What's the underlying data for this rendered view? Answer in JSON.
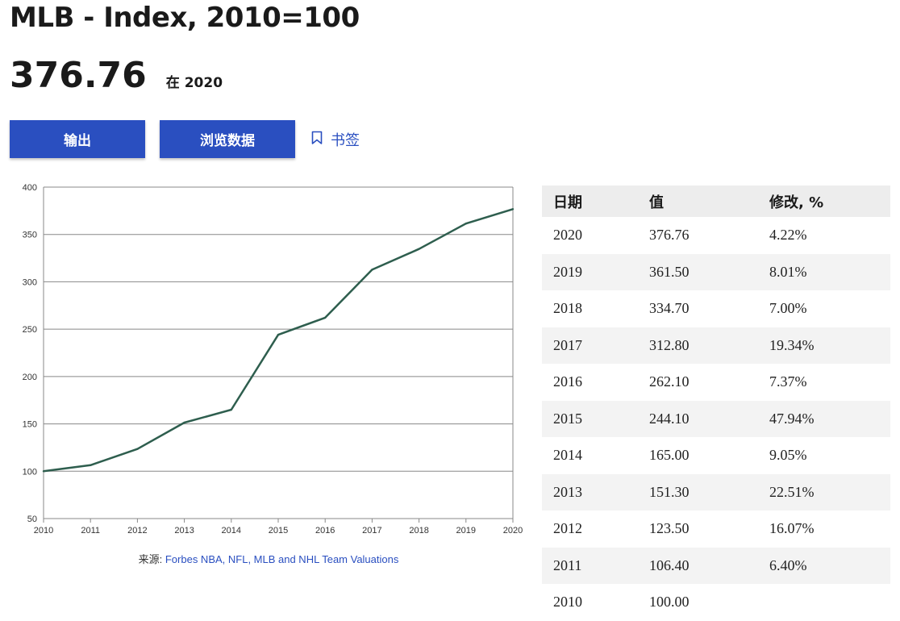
{
  "header": {
    "title": "MLB - Index, 2010=100",
    "latest_value": "376.76",
    "latest_note": "在 2020"
  },
  "actions": {
    "export_label": "输出",
    "browse_label": "浏览数据",
    "bookmark_label": "书签"
  },
  "source": {
    "prefix": "来源: ",
    "link_text": "Forbes NBA, NFL, MLB and NHL Team Valuations"
  },
  "table": {
    "headers": [
      "日期",
      "值",
      "修改, %"
    ],
    "rows": [
      [
        "2020",
        "376.76",
        "4.22%"
      ],
      [
        "2019",
        "361.50",
        "8.01%"
      ],
      [
        "2018",
        "334.70",
        "7.00%"
      ],
      [
        "2017",
        "312.80",
        "19.34%"
      ],
      [
        "2016",
        "262.10",
        "7.37%"
      ],
      [
        "2015",
        "244.10",
        "47.94%"
      ],
      [
        "2014",
        "165.00",
        "9.05%"
      ],
      [
        "2013",
        "151.30",
        "22.51%"
      ],
      [
        "2012",
        "123.50",
        "16.07%"
      ],
      [
        "2011",
        "106.40",
        "6.40%"
      ],
      [
        "2010",
        "100.00",
        ""
      ]
    ]
  },
  "colors": {
    "accent": "#2a4fc0",
    "line": "#2e5e4e",
    "grid": "#888888"
  },
  "chart_data": {
    "type": "line",
    "x": [
      "2010",
      "2011",
      "2012",
      "2013",
      "2014",
      "2015",
      "2016",
      "2017",
      "2018",
      "2019",
      "2020"
    ],
    "values": [
      100.0,
      106.4,
      123.5,
      151.3,
      165.0,
      244.1,
      262.1,
      312.8,
      334.7,
      361.5,
      376.76
    ],
    "ylim": [
      50,
      400
    ],
    "yticks": [
      50,
      100,
      150,
      200,
      250,
      300,
      350,
      400
    ],
    "grid": true
  }
}
